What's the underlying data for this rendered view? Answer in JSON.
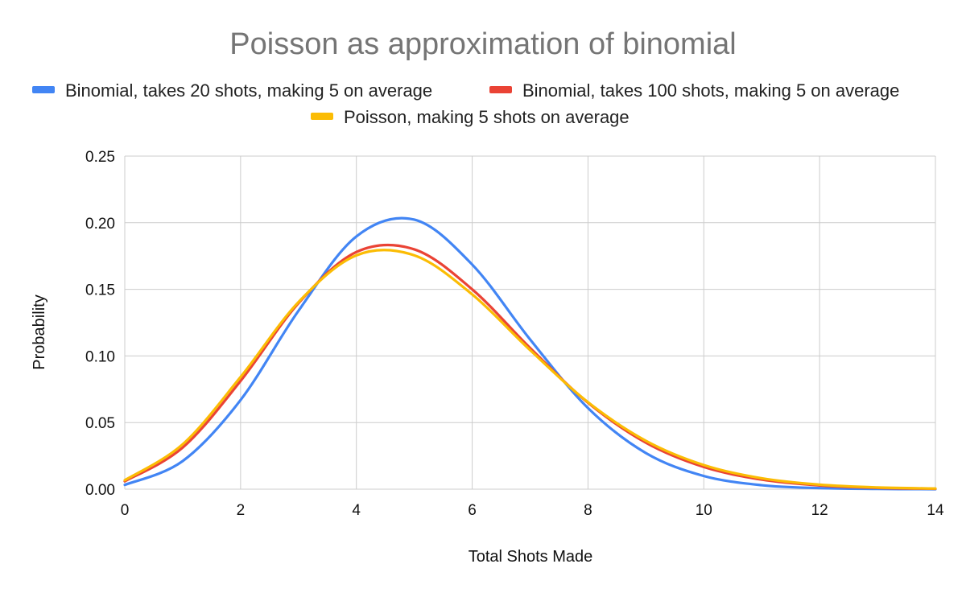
{
  "chart_data": {
    "type": "line",
    "title": "Poisson as approximation of binomial",
    "xlabel": "Total Shots Made",
    "ylabel": "Probability",
    "xlim": [
      0,
      14
    ],
    "ylim": [
      0,
      0.25
    ],
    "x_ticks": [
      "0",
      "2",
      "4",
      "6",
      "8",
      "10",
      "12",
      "14"
    ],
    "y_ticks": [
      "0.00",
      "0.05",
      "0.10",
      "0.15",
      "0.20",
      "0.25"
    ],
    "grid": true,
    "smooth": true,
    "legend_position": "top",
    "x": [
      0,
      1,
      2,
      3,
      4,
      5,
      6,
      7,
      8,
      9,
      10,
      11,
      12,
      13,
      14
    ],
    "series": [
      {
        "name": "Binomial, takes 20 shots, making 5 on average",
        "color": "#4285f4",
        "values": [
          0.0032,
          0.0211,
          0.0669,
          0.1339,
          0.1897,
          0.2023,
          0.1686,
          0.1124,
          0.0609,
          0.0271,
          0.0099,
          0.003,
          0.0008,
          0.0002,
          0.0
        ]
      },
      {
        "name": "Binomial, takes 100 shots, making 5 on average",
        "color": "#ea4335",
        "values": [
          0.0059,
          0.0312,
          0.0812,
          0.1396,
          0.178,
          0.18,
          0.15,
          0.106,
          0.0649,
          0.0349,
          0.0167,
          0.0072,
          0.0028,
          0.001,
          0.0003
        ]
      },
      {
        "name": "Poisson, making 5 shots on average",
        "color": "#fbbc04",
        "values": [
          0.0067,
          0.0337,
          0.0842,
          0.1404,
          0.1755,
          0.1755,
          0.1462,
          0.1044,
          0.0653,
          0.0363,
          0.0181,
          0.0082,
          0.0034,
          0.0013,
          0.0005
        ]
      }
    ]
  }
}
